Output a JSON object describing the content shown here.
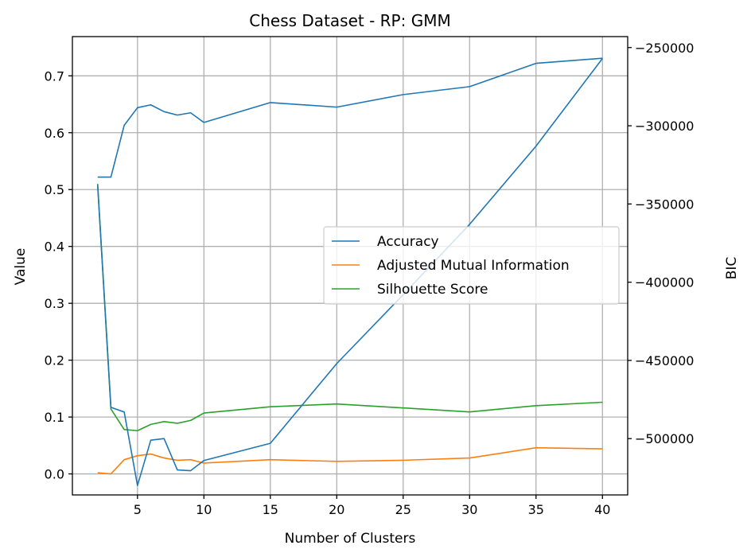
{
  "chart_data": {
    "type": "line",
    "title": "Chess Dataset - RP: GMM",
    "xlabel": "Number of Clusters",
    "ylabel": "Value",
    "y2label": "BIC",
    "xlim": [
      0.1,
      41.9
    ],
    "ylim": [
      -0.037,
      0.769
    ],
    "y2lim": [
      -536000,
      -243000
    ],
    "xticks": [
      5,
      10,
      15,
      20,
      25,
      30,
      35,
      40
    ],
    "yticks": [
      0.0,
      0.1,
      0.2,
      0.3,
      0.4,
      0.5,
      0.6,
      0.7
    ],
    "y2ticks": [
      -500000,
      -450000,
      -400000,
      -350000,
      -300000,
      -250000
    ],
    "xtick_labels": [
      "5",
      "10",
      "15",
      "20",
      "25",
      "30",
      "35",
      "40"
    ],
    "ytick_labels": [
      "0.0",
      "0.1",
      "0.2",
      "0.3",
      "0.4",
      "0.5",
      "0.6",
      "0.7"
    ],
    "y2tick_labels": [
      "−500000",
      "−450000",
      "−400000",
      "−350000",
      "−300000",
      "−250000"
    ],
    "grid": true,
    "legend_position": "center-right",
    "x": [
      2,
      3,
      4,
      5,
      6,
      7,
      8,
      9,
      10,
      15,
      20,
      25,
      30,
      35,
      40
    ],
    "series": [
      {
        "name": "Accuracy",
        "axis": "left",
        "color": "#1f77b4",
        "values": [
          0.522,
          0.522,
          0.613,
          0.644,
          0.649,
          0.637,
          0.631,
          0.635,
          0.618,
          0.653,
          0.645,
          0.667,
          0.681,
          0.722,
          0.731
        ],
        "in_legend": true
      },
      {
        "name": "Adjusted Mutual Information",
        "axis": "left",
        "color": "#ff7f0e",
        "values": [
          0.002,
          0.0,
          0.025,
          0.032,
          0.035,
          0.028,
          0.024,
          0.025,
          0.019,
          0.025,
          0.022,
          0.024,
          0.028,
          0.046,
          0.044
        ],
        "in_legend": true
      },
      {
        "name": "Silhouette Score",
        "axis": "left",
        "color": "#2ca02c",
        "values": [
          0.51,
          0.114,
          0.078,
          0.076,
          0.087,
          0.092,
          0.089,
          0.094,
          0.107,
          0.118,
          0.123,
          0.116,
          0.109,
          0.12,
          0.126
        ],
        "in_legend": true
      },
      {
        "name": "BIC",
        "axis": "right",
        "color": "#1f77b4",
        "values": [
          -338000,
          -480000,
          -483000,
          -530000,
          -501000,
          -500000,
          -520000,
          -520500,
          -514000,
          -503000,
          -452000,
          -408000,
          -363000,
          -313000,
          -257000
        ],
        "in_legend": false
      }
    ]
  }
}
